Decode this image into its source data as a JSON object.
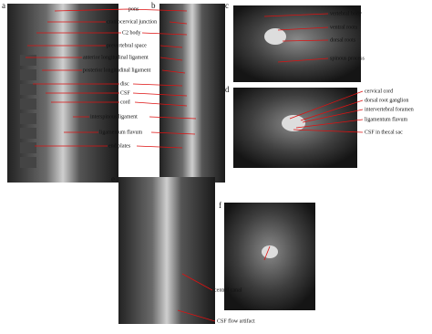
{
  "panels": [
    {
      "letter": "a",
      "labels": [
        "pons",
        "craniocervical junction",
        "C2 body",
        "prevertebral space",
        "anterior longitudinal ligament",
        "posterior longitudinal ligament",
        "disc",
        "CSF",
        "cord",
        "interspinous ligament",
        "ligamentum flavum",
        "end plates"
      ]
    },
    {
      "letter": "b",
      "labels": []
    },
    {
      "letter": "c",
      "labels": [
        "vertebral body",
        "ventral roots",
        "dorsal roots",
        "spinous process"
      ]
    },
    {
      "letter": "d",
      "labels": [
        "cervical cord",
        "dorsal root ganglion",
        "intervertebral foramen",
        "ligamentum flavum",
        "CSF in thecal sac"
      ]
    },
    {
      "letter": "e",
      "labels": [
        "central canal",
        "CSF flow artifact"
      ]
    },
    {
      "letter": "f",
      "labels": []
    }
  ]
}
